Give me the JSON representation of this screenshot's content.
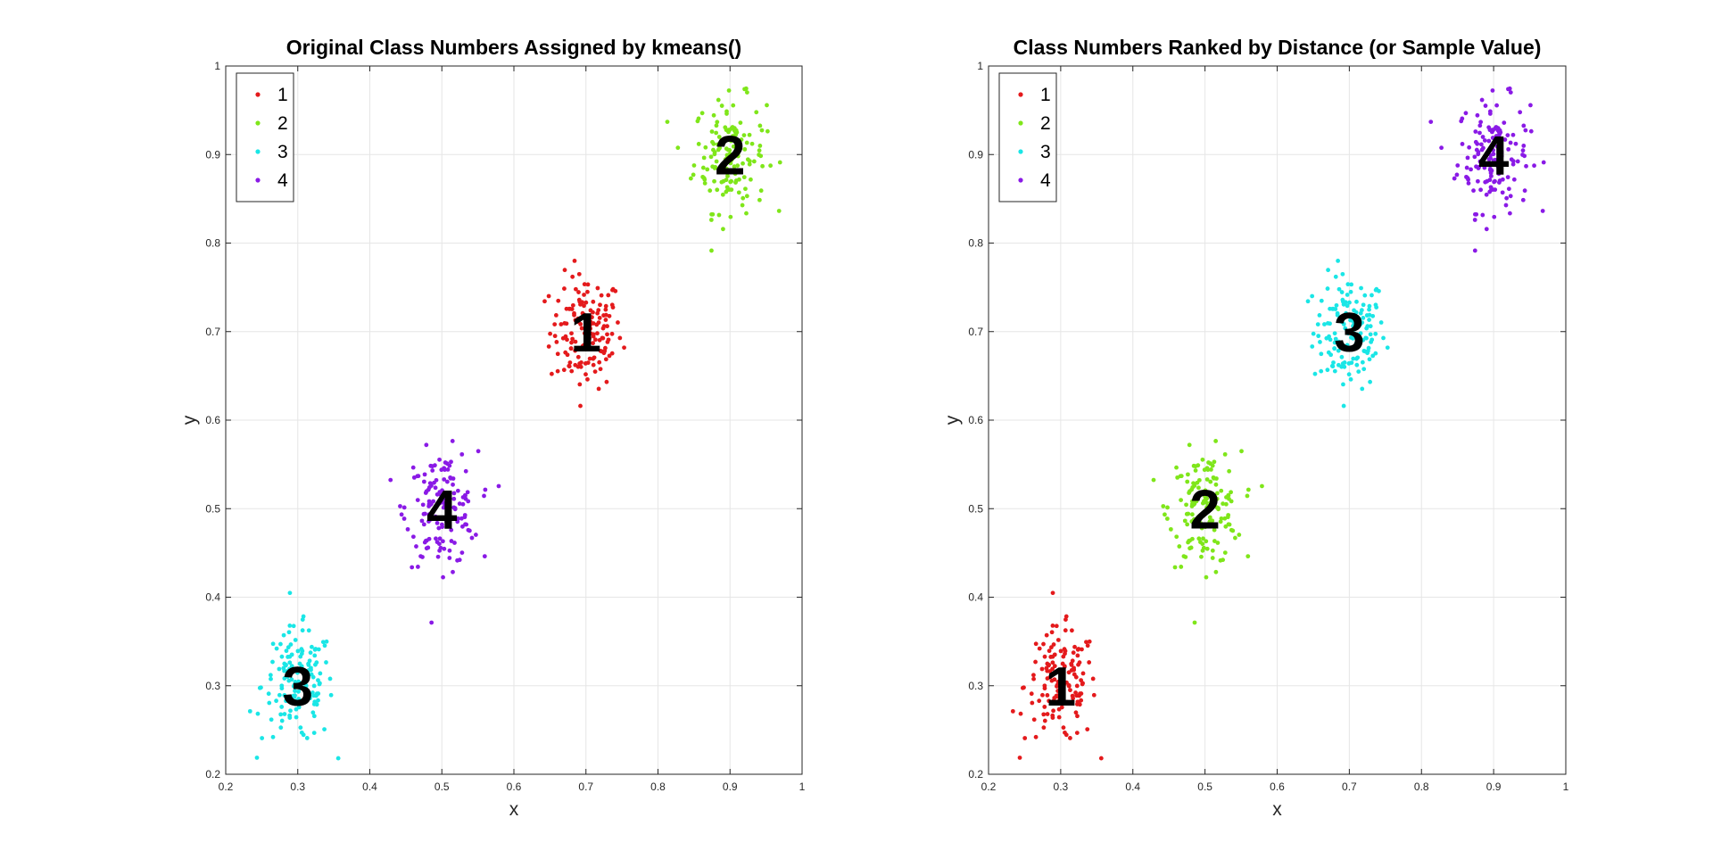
{
  "chart_data": [
    {
      "type": "scatter",
      "title": "Original Class Numbers Assigned by kmeans()",
      "xlabel": "x",
      "ylabel": "y",
      "xlim": [
        0.2,
        1
      ],
      "ylim": [
        0.2,
        1
      ],
      "xticks": [
        "0.2",
        "0.3",
        "0.4",
        "0.5",
        "0.6",
        "0.7",
        "0.8",
        "0.9",
        "1"
      ],
      "yticks": [
        "0.2",
        "0.3",
        "0.4",
        "0.5",
        "0.6",
        "0.7",
        "0.8",
        "0.9",
        "1"
      ],
      "grid": true,
      "legend_position": "top-left",
      "series": [
        {
          "name": "1",
          "color": "#e41a1c",
          "center": [
            0.7,
            0.7
          ]
        },
        {
          "name": "2",
          "color": "#7fe61a",
          "center": [
            0.9,
            0.9
          ]
        },
        {
          "name": "3",
          "color": "#1ae6e6",
          "center": [
            0.3,
            0.3
          ]
        },
        {
          "name": "4",
          "color": "#8a1ae6",
          "center": [
            0.5,
            0.5
          ]
        }
      ],
      "annotations": [
        {
          "text": "1",
          "x": 0.7,
          "y": 0.7
        },
        {
          "text": "2",
          "x": 0.9,
          "y": 0.9
        },
        {
          "text": "3",
          "x": 0.3,
          "y": 0.3
        },
        {
          "text": "4",
          "x": 0.5,
          "y": 0.5
        }
      ]
    },
    {
      "type": "scatter",
      "title": "Class Numbers Ranked by Distance (or Sample Value)",
      "xlabel": "x",
      "ylabel": "y",
      "xlim": [
        0.2,
        1
      ],
      "ylim": [
        0.2,
        1
      ],
      "xticks": [
        "0.2",
        "0.3",
        "0.4",
        "0.5",
        "0.6",
        "0.7",
        "0.8",
        "0.9",
        "1"
      ],
      "yticks": [
        "0.2",
        "0.3",
        "0.4",
        "0.5",
        "0.6",
        "0.7",
        "0.8",
        "0.9",
        "1"
      ],
      "grid": true,
      "legend_position": "top-left",
      "series": [
        {
          "name": "1",
          "color": "#e41a1c",
          "center": [
            0.3,
            0.3
          ]
        },
        {
          "name": "2",
          "color": "#7fe61a",
          "center": [
            0.5,
            0.5
          ]
        },
        {
          "name": "3",
          "color": "#1ae6e6",
          "center": [
            0.7,
            0.7
          ]
        },
        {
          "name": "4",
          "color": "#8a1ae6",
          "center": [
            0.9,
            0.9
          ]
        }
      ],
      "annotations": [
        {
          "text": "1",
          "x": 0.3,
          "y": 0.3
        },
        {
          "text": "2",
          "x": 0.5,
          "y": 0.5
        },
        {
          "text": "3",
          "x": 0.7,
          "y": 0.7
        },
        {
          "text": "4",
          "x": 0.9,
          "y": 0.9
        }
      ]
    }
  ],
  "cluster_spread": {
    "x_std": 0.025,
    "y_std": 0.032,
    "points_per_cluster": 150
  },
  "colors": {
    "grid": "#e6e6e6",
    "axis": "#262626"
  }
}
